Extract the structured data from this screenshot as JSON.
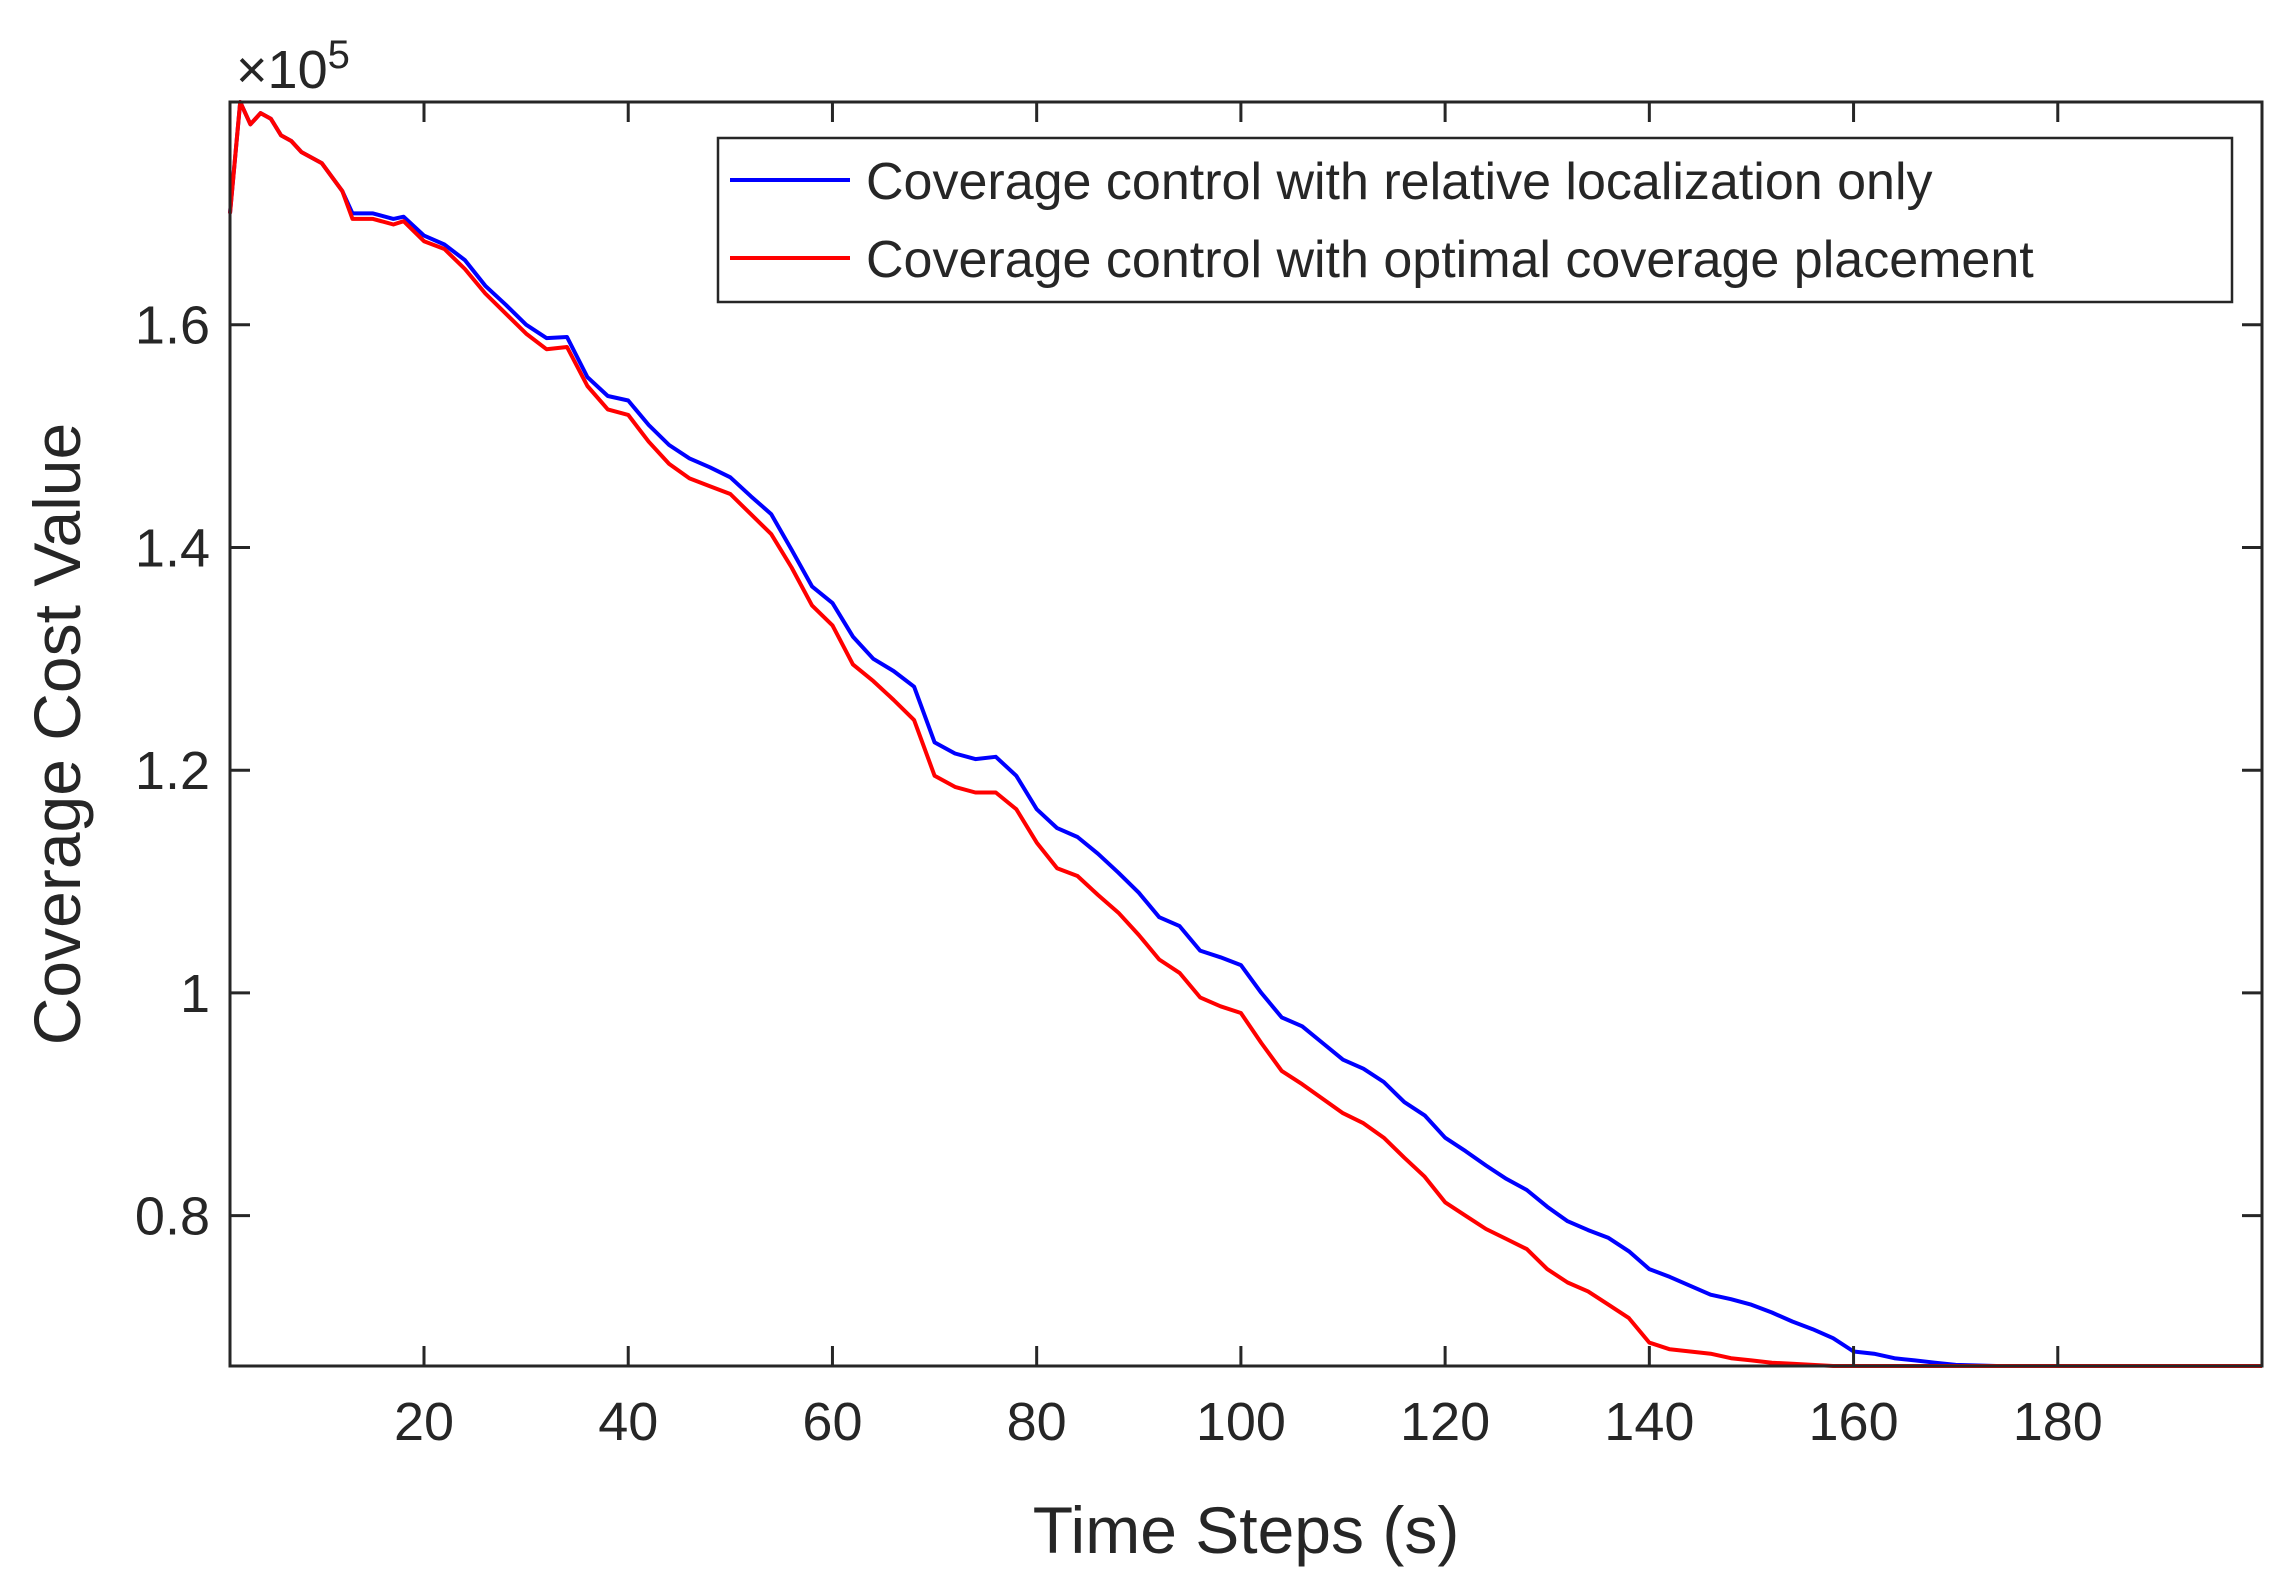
{
  "chart_data": {
    "type": "line",
    "title": "",
    "xlabel": "Time Steps (s)",
    "ylabel": "Coverage Cost Value",
    "y_exponent_base": "×10",
    "y_exponent_power": "5",
    "xlim": [
      1,
      200
    ],
    "ylim": [
      0.665,
      1.8
    ],
    "xticks": [
      20,
      40,
      60,
      80,
      100,
      120,
      140,
      160,
      180
    ],
    "xtick_labels": [
      "20",
      "40",
      "60",
      "80",
      "100",
      "120",
      "140",
      "160",
      "180"
    ],
    "yticks": [
      0.8,
      1.0,
      1.2,
      1.4,
      1.6
    ],
    "ytick_labels": [
      "0.8",
      "1",
      "1.2",
      "1.4",
      "1.6"
    ],
    "legend_position": "top-right",
    "grid": false,
    "series": [
      {
        "name": "Coverage control with relative localization only",
        "color": "#0000ff",
        "points": [
          [
            1,
            1.7
          ],
          [
            2,
            1.8
          ],
          [
            3,
            1.78
          ],
          [
            4,
            1.79
          ],
          [
            5,
            1.785
          ],
          [
            6,
            1.77
          ],
          [
            7,
            1.765
          ],
          [
            8,
            1.755
          ],
          [
            10,
            1.745
          ],
          [
            12,
            1.72
          ],
          [
            13,
            1.7
          ],
          [
            15,
            1.7
          ],
          [
            17,
            1.695
          ],
          [
            18,
            1.697
          ],
          [
            20,
            1.68
          ],
          [
            22,
            1.672
          ],
          [
            24,
            1.658
          ],
          [
            26,
            1.635
          ],
          [
            28,
            1.618
          ],
          [
            30,
            1.6
          ],
          [
            32,
            1.588
          ],
          [
            34,
            1.589
          ],
          [
            36,
            1.553
          ],
          [
            38,
            1.536
          ],
          [
            40,
            1.532
          ],
          [
            42,
            1.51
          ],
          [
            44,
            1.492
          ],
          [
            46,
            1.48
          ],
          [
            48,
            1.472
          ],
          [
            50,
            1.463
          ],
          [
            52,
            1.446
          ],
          [
            54,
            1.43
          ],
          [
            56,
            1.398
          ],
          [
            58,
            1.365
          ],
          [
            60,
            1.35
          ],
          [
            62,
            1.32
          ],
          [
            64,
            1.3
          ],
          [
            66,
            1.289
          ],
          [
            68,
            1.275
          ],
          [
            70,
            1.225
          ],
          [
            72,
            1.215
          ],
          [
            74,
            1.21
          ],
          [
            76,
            1.212
          ],
          [
            78,
            1.195
          ],
          [
            80,
            1.165
          ],
          [
            82,
            1.148
          ],
          [
            84,
            1.14
          ],
          [
            86,
            1.125
          ],
          [
            88,
            1.108
          ],
          [
            90,
            1.09
          ],
          [
            92,
            1.068
          ],
          [
            94,
            1.06
          ],
          [
            96,
            1.038
          ],
          [
            98,
            1.032
          ],
          [
            100,
            1.025
          ],
          [
            102,
            1.0
          ],
          [
            104,
            0.978
          ],
          [
            106,
            0.97
          ],
          [
            108,
            0.955
          ],
          [
            110,
            0.94
          ],
          [
            112,
            0.932
          ],
          [
            114,
            0.92
          ],
          [
            116,
            0.902
          ],
          [
            118,
            0.89
          ],
          [
            120,
            0.87
          ],
          [
            122,
            0.858
          ],
          [
            124,
            0.845
          ],
          [
            126,
            0.833
          ],
          [
            128,
            0.823
          ],
          [
            130,
            0.808
          ],
          [
            132,
            0.795
          ],
          [
            134,
            0.787
          ],
          [
            136,
            0.78
          ],
          [
            138,
            0.768
          ],
          [
            140,
            0.752
          ],
          [
            142,
            0.745
          ],
          [
            144,
            0.737
          ],
          [
            146,
            0.729
          ],
          [
            148,
            0.725
          ],
          [
            150,
            0.72
          ],
          [
            152,
            0.713
          ],
          [
            154,
            0.705
          ],
          [
            156,
            0.698
          ],
          [
            158,
            0.69
          ],
          [
            160,
            0.678
          ],
          [
            162,
            0.676
          ],
          [
            164,
            0.672
          ],
          [
            166,
            0.67
          ],
          [
            168,
            0.668
          ],
          [
            170,
            0.666
          ],
          [
            174,
            0.665
          ],
          [
            178,
            0.665
          ],
          [
            185,
            0.665
          ],
          [
            200,
            0.665
          ]
        ]
      },
      {
        "name": "Coverage control with optimal coverage placement",
        "color": "#ff0000",
        "points": [
          [
            1,
            1.7
          ],
          [
            2,
            1.8
          ],
          [
            3,
            1.78
          ],
          [
            4,
            1.79
          ],
          [
            5,
            1.785
          ],
          [
            6,
            1.77
          ],
          [
            7,
            1.765
          ],
          [
            8,
            1.755
          ],
          [
            10,
            1.745
          ],
          [
            12,
            1.72
          ],
          [
            13,
            1.695
          ],
          [
            15,
            1.695
          ],
          [
            17,
            1.69
          ],
          [
            18,
            1.693
          ],
          [
            20,
            1.675
          ],
          [
            22,
            1.668
          ],
          [
            24,
            1.65
          ],
          [
            26,
            1.628
          ],
          [
            28,
            1.61
          ],
          [
            30,
            1.592
          ],
          [
            32,
            1.578
          ],
          [
            34,
            1.58
          ],
          [
            36,
            1.545
          ],
          [
            38,
            1.524
          ],
          [
            40,
            1.519
          ],
          [
            42,
            1.495
          ],
          [
            44,
            1.475
          ],
          [
            46,
            1.462
          ],
          [
            48,
            1.455
          ],
          [
            50,
            1.448
          ],
          [
            52,
            1.43
          ],
          [
            54,
            1.412
          ],
          [
            56,
            1.382
          ],
          [
            58,
            1.348
          ],
          [
            60,
            1.33
          ],
          [
            62,
            1.295
          ],
          [
            64,
            1.28
          ],
          [
            66,
            1.263
          ],
          [
            68,
            1.245
          ],
          [
            70,
            1.195
          ],
          [
            72,
            1.185
          ],
          [
            74,
            1.18
          ],
          [
            76,
            1.18
          ],
          [
            78,
            1.165
          ],
          [
            80,
            1.135
          ],
          [
            82,
            1.112
          ],
          [
            84,
            1.105
          ],
          [
            86,
            1.088
          ],
          [
            88,
            1.072
          ],
          [
            90,
            1.052
          ],
          [
            92,
            1.03
          ],
          [
            94,
            1.018
          ],
          [
            96,
            0.996
          ],
          [
            98,
            0.988
          ],
          [
            100,
            0.982
          ],
          [
            102,
            0.955
          ],
          [
            104,
            0.93
          ],
          [
            106,
            0.918
          ],
          [
            108,
            0.905
          ],
          [
            110,
            0.892
          ],
          [
            112,
            0.883
          ],
          [
            114,
            0.87
          ],
          [
            116,
            0.852
          ],
          [
            118,
            0.835
          ],
          [
            120,
            0.812
          ],
          [
            122,
            0.8
          ],
          [
            124,
            0.788
          ],
          [
            126,
            0.779
          ],
          [
            128,
            0.77
          ],
          [
            130,
            0.752
          ],
          [
            132,
            0.74
          ],
          [
            134,
            0.732
          ],
          [
            136,
            0.72
          ],
          [
            138,
            0.708
          ],
          [
            140,
            0.686
          ],
          [
            142,
            0.68
          ],
          [
            144,
            0.678
          ],
          [
            146,
            0.676
          ],
          [
            148,
            0.672
          ],
          [
            150,
            0.67
          ],
          [
            152,
            0.668
          ],
          [
            154,
            0.667
          ],
          [
            156,
            0.666
          ],
          [
            158,
            0.665
          ],
          [
            160,
            0.665
          ],
          [
            170,
            0.665
          ],
          [
            185,
            0.665
          ],
          [
            200,
            0.665
          ]
        ]
      }
    ]
  }
}
